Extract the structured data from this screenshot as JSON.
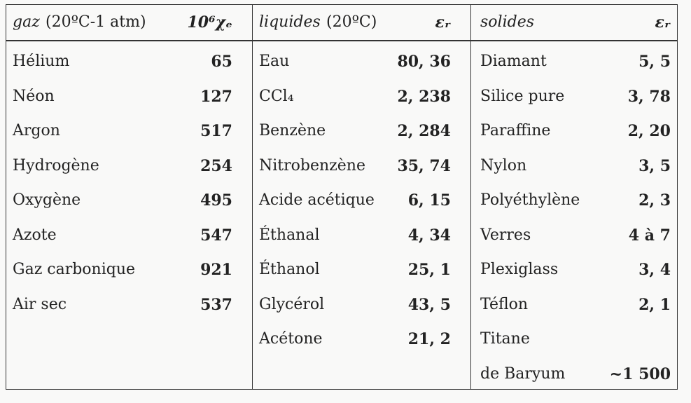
{
  "columns": [
    {
      "title": "gaz",
      "condition": "(20ºC-1 atm)",
      "symbol": "10⁶χₑ",
      "rows": [
        {
          "name": "Hélium",
          "value": "65"
        },
        {
          "name": "Néon",
          "value": "127"
        },
        {
          "name": "Argon",
          "value": "517"
        },
        {
          "name": "Hydrogène",
          "value": "254"
        },
        {
          "name": "Oxygène",
          "value": "495"
        },
        {
          "name": "Azote",
          "value": "547"
        },
        {
          "name": "Gaz carbonique",
          "value": "921"
        },
        {
          "name": "Air sec",
          "value": "537"
        }
      ]
    },
    {
      "title": "liquides",
      "condition": "(20ºC)",
      "symbol": "εᵣ",
      "rows": [
        {
          "name": "Eau",
          "value": "80, 36"
        },
        {
          "name": "CCl₄",
          "value": "2, 238"
        },
        {
          "name": "Benzène",
          "value": "2, 284"
        },
        {
          "name": "Nitrobenzène",
          "value": "35, 74"
        },
        {
          "name": "Acide acétique",
          "value": "6, 15"
        },
        {
          "name": "Éthanal",
          "value": "4, 34"
        },
        {
          "name": "Éthanol",
          "value": "25, 1"
        },
        {
          "name": "Glycérol",
          "value": "43, 5"
        },
        {
          "name": "Acétone",
          "value": "21, 2"
        }
      ]
    },
    {
      "title": "solides",
      "symbol": "εᵣ",
      "rows": [
        {
          "name": "Diamant",
          "value": "5, 5"
        },
        {
          "name": "Silice pure",
          "value": "3, 78"
        },
        {
          "name": "Paraffine",
          "value": "2, 20"
        },
        {
          "name": "Nylon",
          "value": "3, 5"
        },
        {
          "name": "Polyéthylène",
          "value": "2, 3"
        },
        {
          "name": "Verres",
          "value": "4 à 7"
        },
        {
          "name": "Plexiglass",
          "value": "3, 4"
        },
        {
          "name": "Téflon",
          "value": "2, 1"
        },
        {
          "name": "Titane"
        },
        {
          "name": "de Baryum",
          "value": "~1 500"
        }
      ]
    }
  ]
}
